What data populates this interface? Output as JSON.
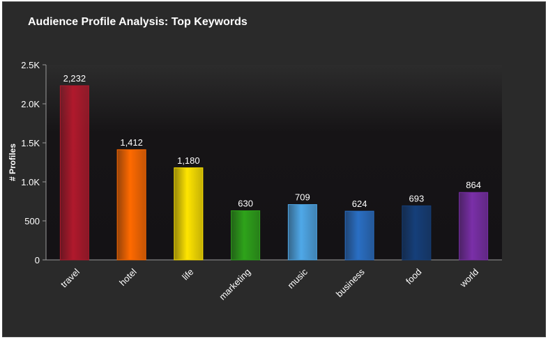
{
  "chart_data": {
    "type": "bar",
    "title": "Audience Profile Analysis: Top Keywords",
    "xlabel": "",
    "ylabel": "# Profiles",
    "ylim": [
      0,
      2500
    ],
    "yticks": [
      0,
      500,
      1000,
      1500,
      2000,
      2500
    ],
    "ytick_labels": [
      "0",
      "500",
      "1.0K",
      "1.5K",
      "2.0K",
      "2.5K"
    ],
    "categories": [
      "travel",
      "hotel",
      "life",
      "marketing",
      "music",
      "business",
      "food",
      "world"
    ],
    "values": [
      2232,
      1412,
      1180,
      630,
      709,
      624,
      693,
      864
    ],
    "data_labels": [
      "2,232",
      "1,412",
      "1,180",
      "630",
      "709",
      "624",
      "693",
      "864"
    ],
    "colors": [
      "#b0192c",
      "#ff6a00",
      "#ffe500",
      "#2ea31a",
      "#4fa8e8",
      "#2a6fc4",
      "#153f7a",
      "#7a2fa8"
    ],
    "grid": false,
    "legend": "none"
  }
}
